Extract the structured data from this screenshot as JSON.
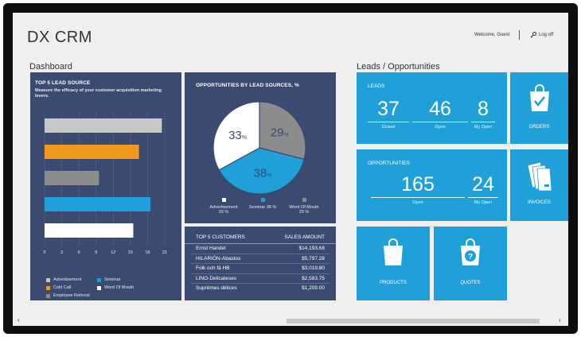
{
  "app": {
    "title": "DX CRM",
    "welcome": "Welcome, Guest",
    "logoff": "Log off"
  },
  "dashboard": {
    "title": "Dashboard",
    "lead_source": {
      "title": "TOP 5 LEAD SOURCE",
      "subtitle": "Measure the efficacy of your customer acquisition marketing levers.",
      "ticks": [
        "0",
        "3",
        "6",
        "9",
        "12",
        "15",
        "18",
        "21"
      ],
      "legend": [
        {
          "label": "Advertisement",
          "color": "#c8c8c8"
        },
        {
          "label": "Seminar",
          "color": "#1fa0d8"
        },
        {
          "label": "Cold Call",
          "color": "#f39a1e"
        },
        {
          "label": "Word Of Mouth",
          "color": "#ffffff"
        },
        {
          "label": "Employee Referral",
          "color": "#8c8c8c"
        }
      ]
    },
    "opportunities_by_source": {
      "title": "OPPORTUNITIES BY LEAD SOURCES, %",
      "legend": [
        {
          "label": "Advertisement",
          "pct": "33 %",
          "color": "#ffffff"
        },
        {
          "label": "Seminar 38 %",
          "pct": "",
          "color": "#1fa0d8"
        },
        {
          "label": "Word Of Mouth",
          "pct": "29 %",
          "color": "#8c8c8c"
        }
      ]
    },
    "top_customers": {
      "title": "TOP 5 CUSTOMERS",
      "col_amount": "SALES AMOUNT",
      "rows": [
        {
          "name": "Ernst Handel",
          "amount": "$14,193.68"
        },
        {
          "name": "HILARIÓN-Abastos",
          "amount": "$5,797.28"
        },
        {
          "name": "Folk och fä HB",
          "amount": "$3,019.80"
        },
        {
          "name": "LINO-Delicateses",
          "amount": "$2,583.75"
        },
        {
          "name": "Suprêmes délices",
          "amount": "$1,209.00"
        }
      ]
    }
  },
  "chart_data": [
    {
      "type": "bar",
      "title": "TOP 5 LEAD SOURCE",
      "orientation": "horizontal",
      "categories": [
        "Advertisement",
        "Cold Call",
        "Employee Referral",
        "Seminar",
        "Word Of Mouth"
      ],
      "values": [
        20.5,
        16.5,
        9.5,
        18.5,
        15.5
      ],
      "colors": [
        "#c8c8c8",
        "#f39a1e",
        "#8c8c8c",
        "#1fa0d8",
        "#ffffff"
      ],
      "xlim": [
        0,
        21
      ]
    },
    {
      "type": "pie",
      "title": "OPPORTUNITIES BY LEAD SOURCES, %",
      "categories": [
        "Advertisement",
        "Seminar",
        "Word Of Mouth"
      ],
      "values": [
        33,
        38,
        29
      ],
      "colors": [
        "#ffffff",
        "#1fa0d8",
        "#8c8c8c"
      ],
      "labels": [
        "33",
        "38",
        "29"
      ],
      "unit": "%"
    }
  ],
  "leads_opps": {
    "title": "Leads / Opportunities",
    "leads": {
      "title": "LEADS",
      "closed": "37",
      "closed_label": "Closed",
      "open": "46",
      "open_label": "Open",
      "my_open": "8",
      "my_open_label": "My Open"
    },
    "opportunities": {
      "title": "OPPORTUNITIES",
      "open": "165",
      "open_label": "Open",
      "my_open": "24",
      "my_open_label": "My Open"
    },
    "tiles": {
      "orders": "ORDERS",
      "invoices": "INVOICES",
      "products": "PRODUCTS",
      "quotes": "QUOTES"
    }
  },
  "scrollbar": {
    "left": "‹",
    "right": "›"
  }
}
